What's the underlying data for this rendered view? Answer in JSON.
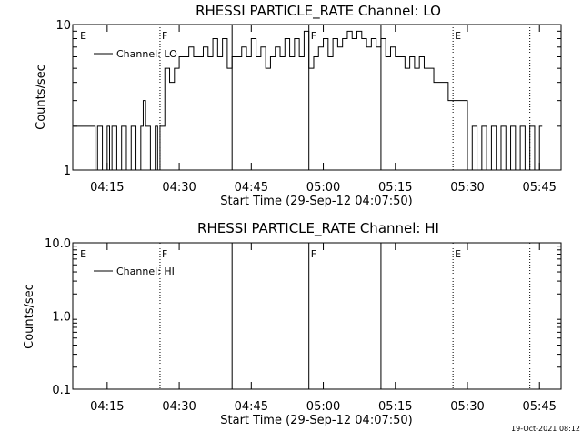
{
  "footer_timestamp": "19-Oct-2021 08:12",
  "x_ticks": [
    "04:15",
    "04:30",
    "04:45",
    "05:00",
    "05:15",
    "05:30",
    "05:45"
  ],
  "chart_data": [
    {
      "type": "line",
      "title": "RHESSI PARTICLE_RATE Channel: LO",
      "xlabel": "Start Time (29-Sep-12 04:07:50)",
      "ylabel": "Counts/sec",
      "yscale": "log",
      "ylim": [
        1,
        10
      ],
      "y_ticks": [
        "1",
        "10"
      ],
      "legend": "top-left",
      "series": [
        {
          "name": "Channel: LO",
          "points": [
            [
              "04:08",
              2
            ],
            [
              "04:12",
              2
            ],
            [
              "04:12.5",
              1
            ],
            [
              "04:13",
              2
            ],
            [
              "04:14",
              1
            ],
            [
              "04:15",
              2
            ],
            [
              "04:15.5",
              1
            ],
            [
              "04:16",
              2
            ],
            [
              "04:17",
              1
            ],
            [
              "04:18",
              2
            ],
            [
              "04:19",
              1
            ],
            [
              "04:20",
              2
            ],
            [
              "04:21",
              1
            ],
            [
              "04:22",
              2
            ],
            [
              "04:22.5",
              3
            ],
            [
              "04:23",
              2
            ],
            [
              "04:24",
              1
            ],
            [
              "04:25",
              2
            ],
            [
              "04:25.5",
              1
            ],
            [
              "04:26",
              2
            ],
            [
              "04:27",
              5
            ],
            [
              "04:28",
              4
            ],
            [
              "04:29",
              5
            ],
            [
              "04:30",
              6
            ],
            [
              "04:31",
              6
            ],
            [
              "04:32",
              7
            ],
            [
              "04:33",
              6
            ],
            [
              "04:34",
              6
            ],
            [
              "04:35",
              7
            ],
            [
              "04:36",
              6
            ],
            [
              "04:37",
              8
            ],
            [
              "04:38",
              6
            ],
            [
              "04:39",
              8
            ],
            [
              "04:40",
              5
            ],
            [
              "04:41",
              6
            ],
            [
              "04:42",
              6
            ],
            [
              "04:43",
              7
            ],
            [
              "04:44",
              6
            ],
            [
              "04:45",
              8
            ],
            [
              "04:46",
              6
            ],
            [
              "04:47",
              7
            ],
            [
              "04:48",
              5
            ],
            [
              "04:49",
              6
            ],
            [
              "04:50",
              7
            ],
            [
              "04:51",
              6
            ],
            [
              "04:52",
              8
            ],
            [
              "04:53",
              6
            ],
            [
              "04:54",
              8
            ],
            [
              "04:55",
              6
            ],
            [
              "04:56",
              9
            ],
            [
              "04:57",
              5
            ],
            [
              "04:58",
              6
            ],
            [
              "04:59",
              7
            ],
            [
              "05:00",
              8
            ],
            [
              "05:01",
              6
            ],
            [
              "05:02",
              8
            ],
            [
              "05:03",
              7
            ],
            [
              "05:04",
              8
            ],
            [
              "05:05",
              9
            ],
            [
              "05:06",
              8
            ],
            [
              "05:07",
              9
            ],
            [
              "05:08",
              8
            ],
            [
              "05:09",
              7
            ],
            [
              "05:10",
              8
            ],
            [
              "05:11",
              7
            ],
            [
              "05:12",
              8
            ],
            [
              "05:13",
              6
            ],
            [
              "05:14",
              7
            ],
            [
              "05:15",
              6
            ],
            [
              "05:16",
              6
            ],
            [
              "05:17",
              5
            ],
            [
              "05:18",
              6
            ],
            [
              "05:19",
              5
            ],
            [
              "05:20",
              6
            ],
            [
              "05:21",
              5
            ],
            [
              "05:22",
              5
            ],
            [
              "05:23",
              4
            ],
            [
              "05:24",
              4
            ],
            [
              "05:25",
              4
            ],
            [
              "05:26",
              3
            ],
            [
              "05:27",
              3
            ],
            [
              "05:28",
              3
            ],
            [
              "05:29",
              3
            ],
            [
              "05:30",
              1
            ],
            [
              "05:31",
              2
            ],
            [
              "05:32",
              1
            ],
            [
              "05:33",
              2
            ],
            [
              "05:34",
              1
            ],
            [
              "05:35",
              2
            ],
            [
              "05:36",
              1
            ],
            [
              "05:37",
              2
            ],
            [
              "05:38",
              1
            ],
            [
              "05:39",
              2
            ],
            [
              "05:40",
              1
            ],
            [
              "05:41",
              2
            ],
            [
              "05:42",
              1
            ],
            [
              "05:43",
              2
            ],
            [
              "05:44",
              1
            ],
            [
              "05:45",
              2
            ]
          ]
        }
      ]
    },
    {
      "type": "line",
      "title": "RHESSI PARTICLE_RATE Channel: HI",
      "xlabel": "Start Time (29-Sep-12 04:07:50)",
      "ylabel": "Counts/sec",
      "yscale": "log",
      "ylim": [
        0.1,
        10.0
      ],
      "y_ticks": [
        "0.1",
        "1.0",
        "10.0"
      ],
      "legend": "top-left",
      "series": [
        {
          "name": "Channel: HI",
          "points": []
        }
      ]
    }
  ],
  "time_markers": [
    {
      "time": "04:09",
      "label": "E",
      "style": "none"
    },
    {
      "time": "04:26",
      "label": "F",
      "style": "dotted"
    },
    {
      "time": "04:41",
      "label": "",
      "style": "solid"
    },
    {
      "time": "04:57",
      "label": "F",
      "style": "solid"
    },
    {
      "time": "05:12",
      "label": "",
      "style": "solid"
    },
    {
      "time": "05:27",
      "label": "E",
      "style": "dotted"
    },
    {
      "time": "05:43",
      "label": "",
      "style": "dotted"
    }
  ]
}
